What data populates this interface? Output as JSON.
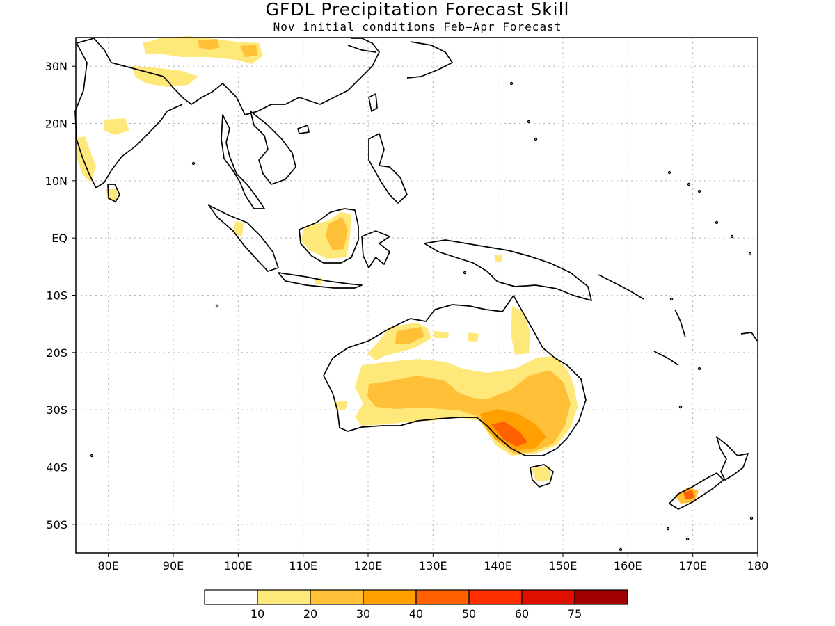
{
  "title": "GFDL Precipitation Forecast Skill",
  "subtitle": "Nov initial conditions  Feb–Apr Forecast",
  "map": {
    "projection": "equirectangular",
    "lon_range": [
      75,
      180
    ],
    "lat_range": [
      -55,
      35
    ],
    "lon_ticks": [
      "80E",
      "90E",
      "100E",
      "110E",
      "120E",
      "130E",
      "140E",
      "150E",
      "160E",
      "170E",
      "180"
    ],
    "lat_ticks": [
      "30N",
      "20N",
      "10N",
      "EQ",
      "10S",
      "20S",
      "30S",
      "40S",
      "50S"
    ],
    "gridlines": true,
    "coastlines": true
  },
  "colorbar": {
    "labels": [
      "10",
      "20",
      "30",
      "40",
      "50",
      "60",
      "75"
    ],
    "colors": [
      "#ffffff",
      "#ffe87a",
      "#ffc037",
      "#ffa000",
      "#ff6000",
      "#ff3000",
      "#e01000",
      "#a00000"
    ]
  }
}
